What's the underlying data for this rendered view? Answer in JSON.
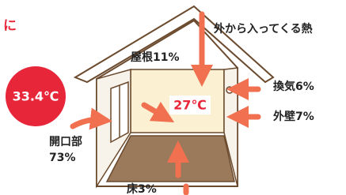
{
  "header": {
    "title": "に"
  },
  "caption": "外から入ってくる熱",
  "outside_temperature": "33.4℃",
  "inside_temperature": "27℃",
  "sources": [
    {
      "name": "屋根",
      "share": "11%"
    },
    {
      "name": "換気",
      "share": "6%"
    },
    {
      "name": "外壁",
      "share": "7%"
    },
    {
      "name": "開口部",
      "share": "73%"
    },
    {
      "name": "床",
      "share": "3%"
    }
  ]
}
